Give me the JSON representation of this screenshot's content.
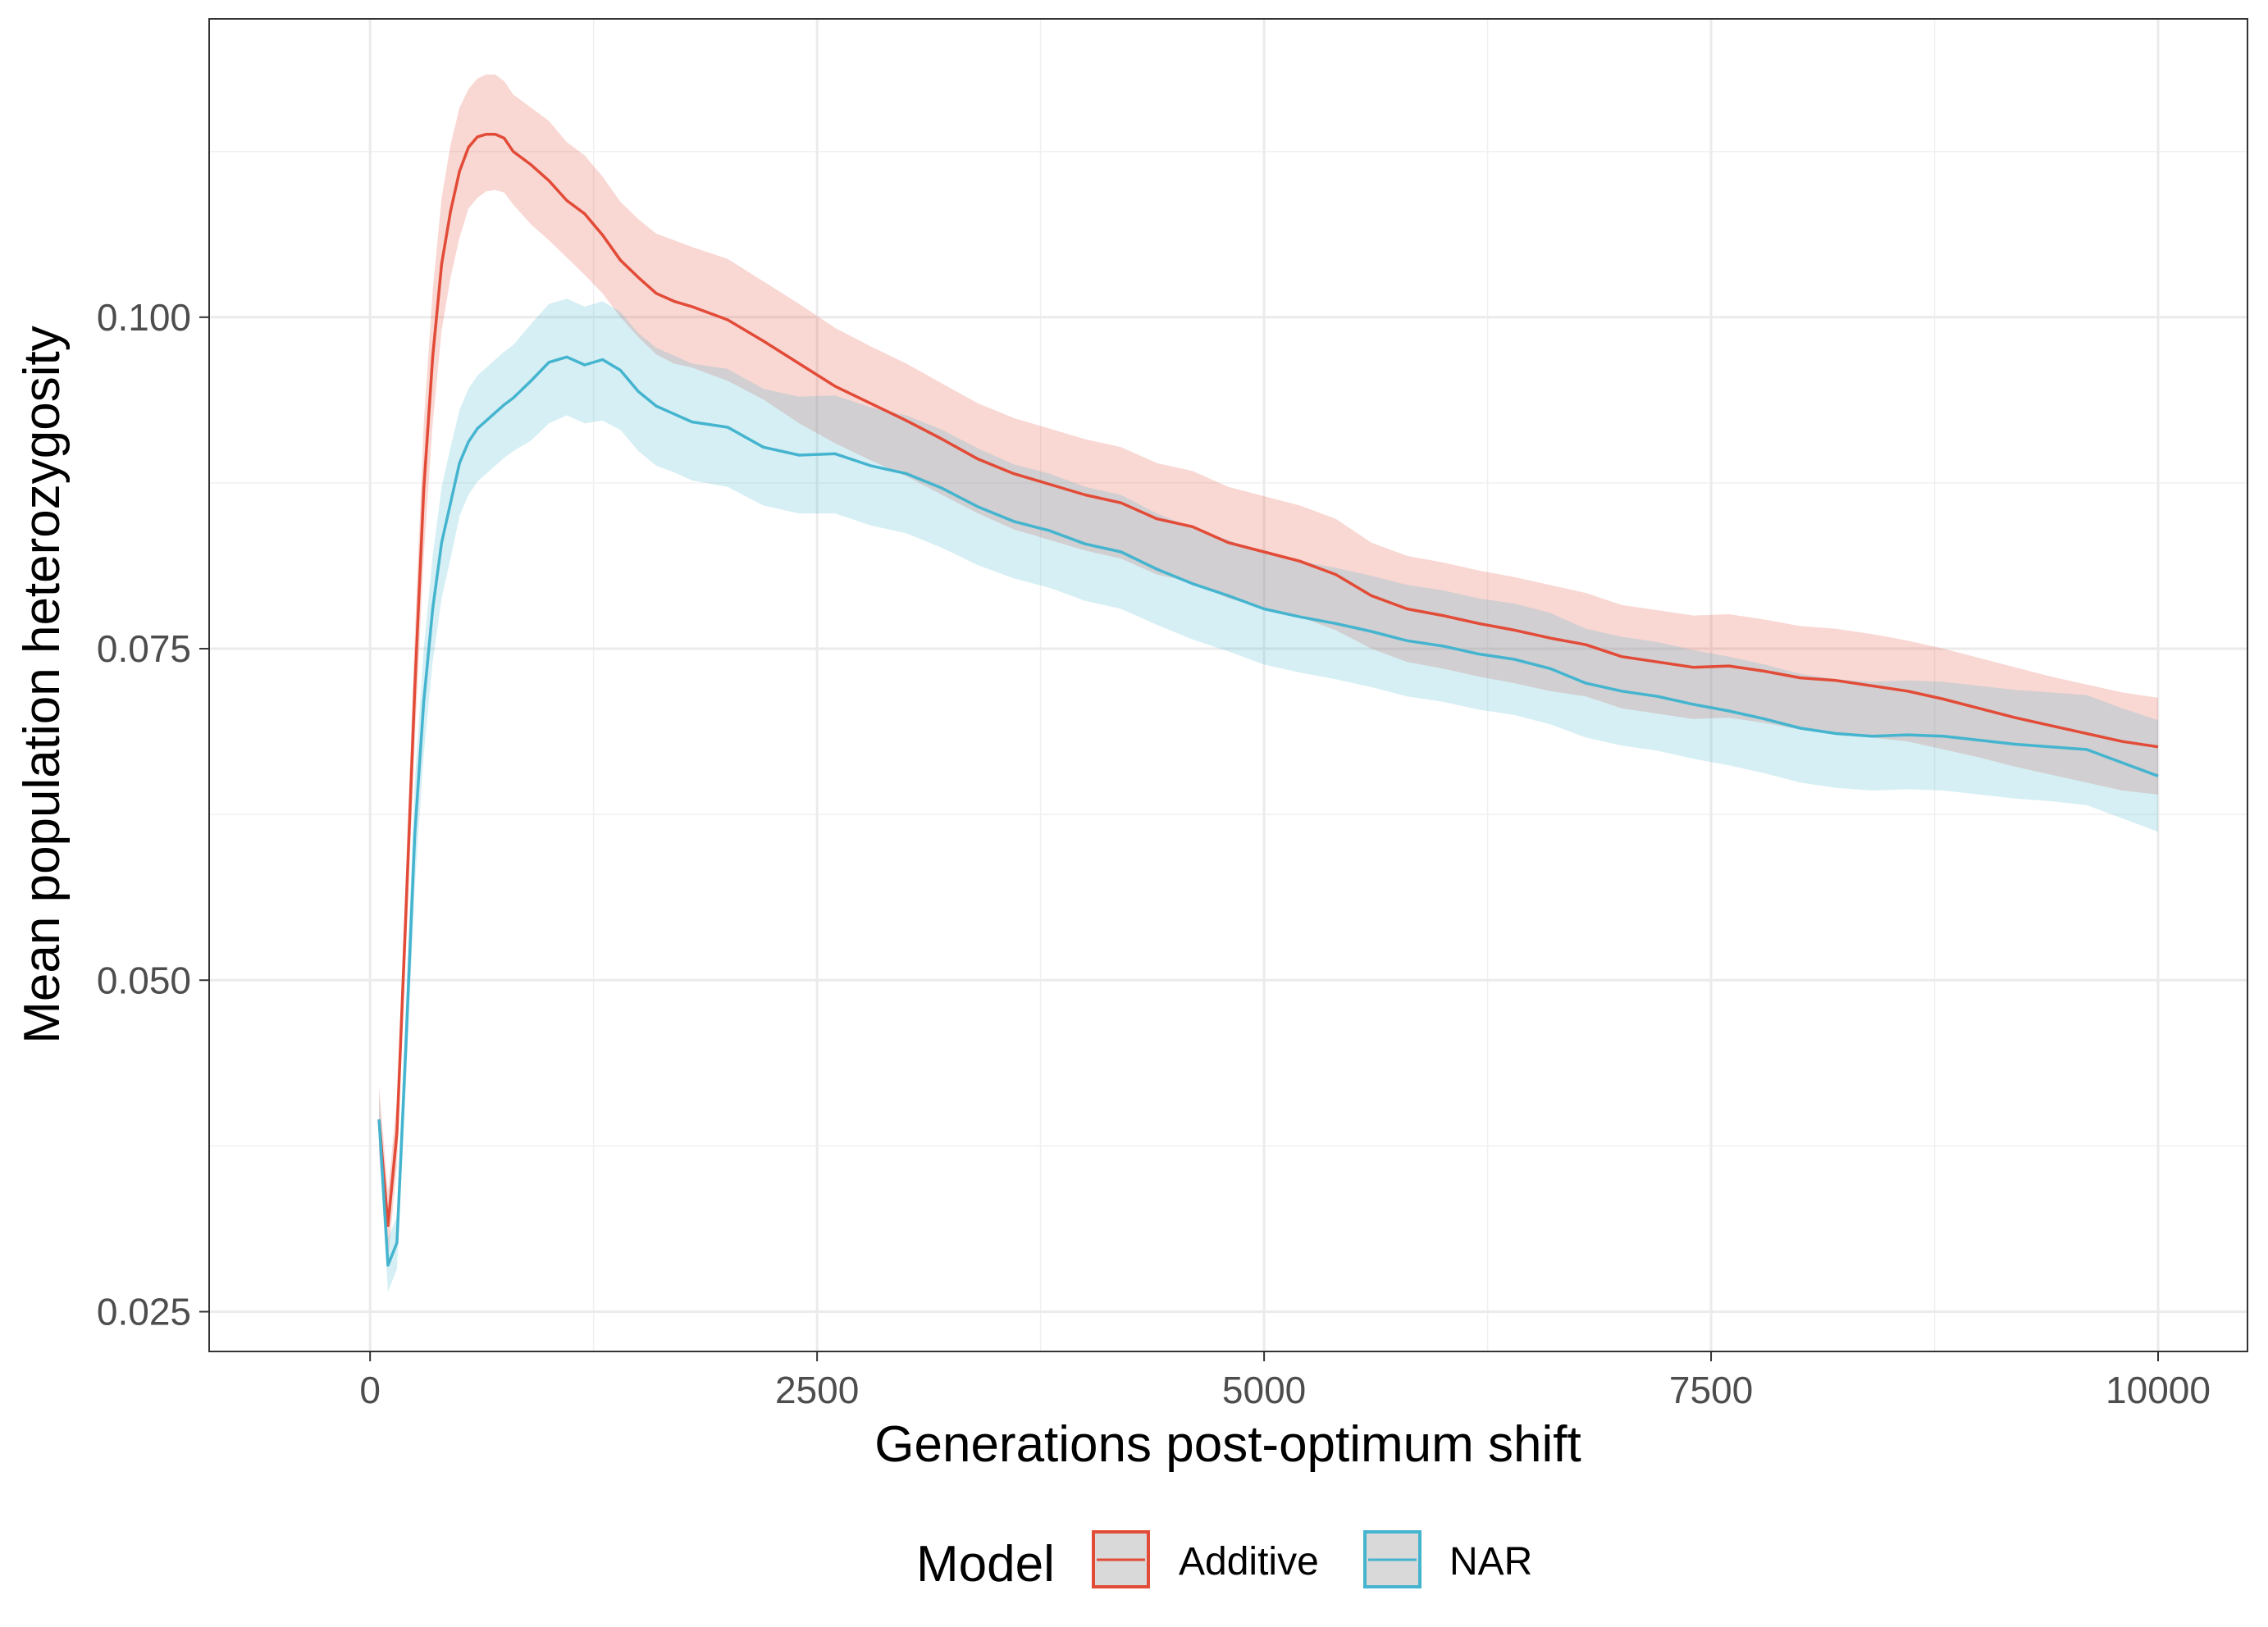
{
  "chart_data": {
    "type": "line",
    "xlabel": "Generations post-optimum shift",
    "ylabel": "Mean population heterozygosity",
    "xlim": [
      -900,
      10500
    ],
    "ylim": [
      0.022,
      0.1225
    ],
    "xticks": [
      0,
      2500,
      5000,
      7500,
      10000
    ],
    "xtick_labels": [
      "0",
      "2500",
      "5000",
      "7500",
      "10000"
    ],
    "yticks": [
      0.025,
      0.05,
      0.075,
      0.1
    ],
    "ytick_labels": [
      "0.025",
      "0.050",
      "0.075",
      "0.100"
    ],
    "grid": true,
    "legend": {
      "title": "Model",
      "position": "bottom"
    },
    "series": [
      {
        "name": "Additive",
        "color": "#E24B37",
        "fill": "#F8CFC8",
        "x": [
          50,
          100,
          150,
          200,
          250,
          300,
          350,
          400,
          450,
          500,
          550,
          600,
          650,
          700,
          750,
          800,
          900,
          1000,
          1100,
          1200,
          1300,
          1400,
          1500,
          1600,
          1700,
          1800,
          2000,
          2200,
          2400,
          2600,
          2800,
          3000,
          3200,
          3400,
          3600,
          3800,
          4000,
          4200,
          4400,
          4600,
          4800,
          5000,
          5200,
          5400,
          5600,
          5800,
          6000,
          6200,
          6400,
          6600,
          6800,
          7000,
          7200,
          7400,
          7600,
          7800,
          8000,
          8200,
          8400,
          8600,
          8800,
          9000,
          9200,
          9400,
          9600,
          9800,
          10000
        ],
        "y": [
          0.0395,
          0.0315,
          0.0385,
          0.055,
          0.072,
          0.087,
          0.097,
          0.104,
          0.108,
          0.111,
          0.1128,
          0.1136,
          0.1138,
          0.1138,
          0.1135,
          0.1125,
          0.1115,
          0.1103,
          0.1088,
          0.1078,
          0.1062,
          0.1043,
          0.103,
          0.1018,
          0.1012,
          0.1008,
          0.0998,
          0.0982,
          0.0965,
          0.0948,
          0.0935,
          0.0922,
          0.0908,
          0.0893,
          0.0882,
          0.0874,
          0.0866,
          0.086,
          0.0848,
          0.0842,
          0.083,
          0.0823,
          0.0816,
          0.0806,
          0.079,
          0.078,
          0.0775,
          0.0769,
          0.0764,
          0.0758,
          0.0753,
          0.0744,
          0.074,
          0.0736,
          0.0737,
          0.0733,
          0.0728,
          0.0726,
          0.0722,
          0.0718,
          0.0712,
          0.0705,
          0.0698,
          0.0692,
          0.0686,
          0.068,
          0.0676
        ],
        "lower": [
          0.037,
          0.029,
          0.036,
          0.052,
          0.068,
          0.082,
          0.092,
          0.099,
          0.103,
          0.106,
          0.1082,
          0.109,
          0.1095,
          0.1096,
          0.1094,
          0.1085,
          0.107,
          0.1058,
          0.1045,
          0.1032,
          0.1018,
          0.1,
          0.0985,
          0.0972,
          0.0965,
          0.0962,
          0.0952,
          0.0938,
          0.092,
          0.0905,
          0.0892,
          0.088,
          0.0866,
          0.0852,
          0.084,
          0.0832,
          0.0824,
          0.0818,
          0.0806,
          0.08,
          0.0788,
          0.0781,
          0.0774,
          0.0764,
          0.075,
          0.074,
          0.0735,
          0.0729,
          0.0724,
          0.0718,
          0.0714,
          0.0705,
          0.0701,
          0.0697,
          0.0698,
          0.0694,
          0.0689,
          0.0687,
          0.0683,
          0.068,
          0.0674,
          0.0668,
          0.0661,
          0.0655,
          0.0649,
          0.0643,
          0.064
        ],
        "upper": [
          0.042,
          0.034,
          0.041,
          0.058,
          0.076,
          0.092,
          0.102,
          0.109,
          0.113,
          0.1158,
          0.1172,
          0.118,
          0.1183,
          0.1183,
          0.1178,
          0.1168,
          0.1158,
          0.1148,
          0.1132,
          0.1122,
          0.1106,
          0.1087,
          0.1074,
          0.1063,
          0.1058,
          0.1053,
          0.1044,
          0.1027,
          0.101,
          0.0992,
          0.0978,
          0.0965,
          0.095,
          0.0935,
          0.0924,
          0.0916,
          0.0908,
          0.0902,
          0.089,
          0.0884,
          0.0872,
          0.0865,
          0.0858,
          0.0848,
          0.083,
          0.082,
          0.0815,
          0.0809,
          0.0804,
          0.0798,
          0.0792,
          0.0783,
          0.0779,
          0.0775,
          0.0776,
          0.0772,
          0.0767,
          0.0765,
          0.0761,
          0.0756,
          0.075,
          0.0743,
          0.0736,
          0.0729,
          0.0723,
          0.0717,
          0.0713
        ]
      },
      {
        "name": "NAR",
        "color": "#45B4CF",
        "fill": "#CDE9F1",
        "x": [
          50,
          100,
          150,
          200,
          250,
          300,
          350,
          400,
          450,
          500,
          550,
          600,
          650,
          700,
          750,
          800,
          900,
          1000,
          1100,
          1200,
          1300,
          1400,
          1500,
          1600,
          1700,
          1800,
          2000,
          2200,
          2400,
          2600,
          2800,
          3000,
          3200,
          3400,
          3600,
          3800,
          4000,
          4200,
          4400,
          4600,
          4800,
          5000,
          5200,
          5400,
          5600,
          5800,
          6000,
          6200,
          6400,
          6600,
          6800,
          7000,
          7200,
          7400,
          7600,
          7800,
          8000,
          8200,
          8400,
          8600,
          8800,
          9000,
          9200,
          9400,
          9600,
          9800,
          10000
        ],
        "y": [
          0.0395,
          0.0285,
          0.0302,
          0.045,
          0.061,
          0.071,
          0.078,
          0.083,
          0.086,
          0.089,
          0.0906,
          0.0916,
          0.0922,
          0.0928,
          0.0934,
          0.0939,
          0.0952,
          0.0966,
          0.097,
          0.0964,
          0.0968,
          0.096,
          0.0944,
          0.0933,
          0.0927,
          0.0921,
          0.0917,
          0.0902,
          0.0896,
          0.0897,
          0.0888,
          0.0882,
          0.0871,
          0.0857,
          0.0846,
          0.0839,
          0.0829,
          0.0823,
          0.081,
          0.0799,
          0.079,
          0.078,
          0.0774,
          0.0769,
          0.0763,
          0.0756,
          0.0752,
          0.0746,
          0.0742,
          0.0735,
          0.0724,
          0.0718,
          0.0714,
          0.0708,
          0.0703,
          0.0697,
          0.069,
          0.0686,
          0.0684,
          0.0685,
          0.0684,
          0.0681,
          0.0678,
          0.0676,
          0.0674,
          0.0664,
          0.0654
        ],
        "lower": [
          0.0375,
          0.0265,
          0.0282,
          0.042,
          0.057,
          0.067,
          0.074,
          0.0788,
          0.0818,
          0.085,
          0.0866,
          0.0876,
          0.0882,
          0.0888,
          0.0894,
          0.0899,
          0.0907,
          0.092,
          0.0926,
          0.092,
          0.0922,
          0.0915,
          0.0899,
          0.0888,
          0.0883,
          0.0877,
          0.0872,
          0.0858,
          0.0852,
          0.0852,
          0.0843,
          0.0837,
          0.0826,
          0.0813,
          0.0803,
          0.0796,
          0.0786,
          0.078,
          0.0768,
          0.0757,
          0.0748,
          0.0738,
          0.0732,
          0.0727,
          0.0721,
          0.0714,
          0.071,
          0.0704,
          0.07,
          0.0693,
          0.0683,
          0.0677,
          0.0673,
          0.0667,
          0.0662,
          0.0656,
          0.0649,
          0.0645,
          0.0643,
          0.0644,
          0.0643,
          0.064,
          0.0637,
          0.0635,
          0.0632,
          0.0622,
          0.0612
        ],
        "upper": [
          0.0415,
          0.0305,
          0.0322,
          0.048,
          0.065,
          0.075,
          0.082,
          0.0872,
          0.0902,
          0.093,
          0.0946,
          0.0956,
          0.0962,
          0.0968,
          0.0974,
          0.0979,
          0.0995,
          0.101,
          0.1014,
          0.1008,
          0.1012,
          0.1004,
          0.0988,
          0.0977,
          0.0971,
          0.0965,
          0.0961,
          0.0946,
          0.094,
          0.0941,
          0.0932,
          0.0926,
          0.0915,
          0.0901,
          0.0889,
          0.0882,
          0.0872,
          0.0866,
          0.0852,
          0.0841,
          0.0832,
          0.0822,
          0.0816,
          0.0811,
          0.0805,
          0.0798,
          0.0794,
          0.0788,
          0.0784,
          0.0777,
          0.0765,
          0.0759,
          0.0755,
          0.0749,
          0.0744,
          0.0738,
          0.0731,
          0.0727,
          0.0725,
          0.0726,
          0.0725,
          0.0722,
          0.0719,
          0.0717,
          0.0715,
          0.0705,
          0.0696
        ]
      }
    ]
  }
}
